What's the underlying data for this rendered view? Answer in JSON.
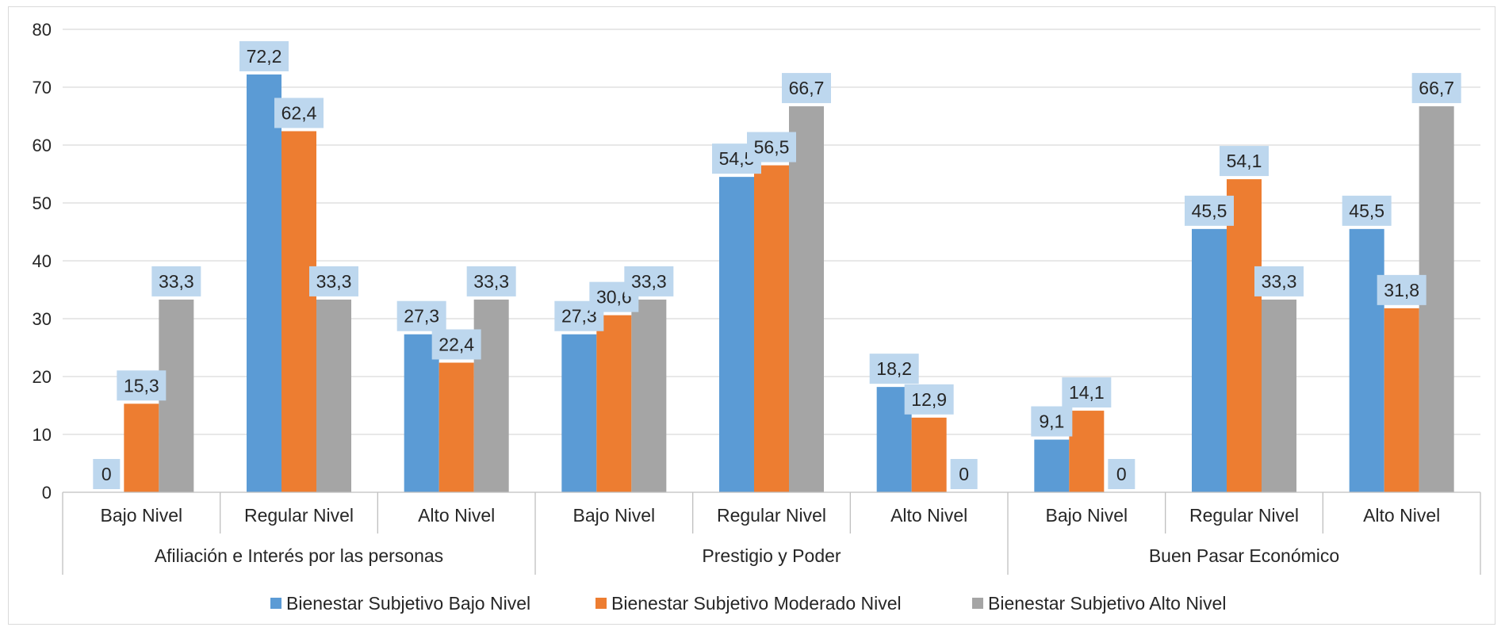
{
  "chart_data": {
    "type": "bar",
    "title": "",
    "xlabel": "",
    "ylabel": "",
    "ylim": [
      0,
      80
    ],
    "yticks": [
      0,
      10,
      20,
      30,
      40,
      50,
      60,
      70,
      80
    ],
    "grid": true,
    "legend_position": "bottom",
    "groups": [
      {
        "name": "Afiliación e Interés por las personas",
        "categories": [
          "Bajo Nivel",
          "Regular Nivel",
          "Alto Nivel"
        ]
      },
      {
        "name": "Prestigio y Poder",
        "categories": [
          "Bajo Nivel",
          "Regular Nivel",
          "Alto Nivel"
        ]
      },
      {
        "name": "Buen Pasar Económico",
        "categories": [
          "Bajo Nivel",
          "Regular Nivel",
          "Alto Nivel"
        ]
      }
    ],
    "categories": [
      "Bajo Nivel",
      "Regular Nivel",
      "Alto Nivel",
      "Bajo Nivel",
      "Regular Nivel",
      "Alto Nivel",
      "Bajo Nivel",
      "Regular Nivel",
      "Alto Nivel"
    ],
    "series": [
      {
        "name": "Bienestar Subjetivo Bajo Nivel",
        "color": "#5b9bd5",
        "values": [
          0,
          72.2,
          27.3,
          27.3,
          54.5,
          18.2,
          9.1,
          45.5,
          45.5
        ],
        "labels": [
          "0",
          "72,2",
          "27,3",
          "27,3",
          "54,5",
          "18,2",
          "9,1",
          "45,5",
          "45,5"
        ]
      },
      {
        "name": "Bienestar Subjetivo Moderado Nivel",
        "color": "#ed7d31",
        "values": [
          15.3,
          62.4,
          22.4,
          30.6,
          56.5,
          12.9,
          14.1,
          54.1,
          31.8
        ],
        "labels": [
          "15,3",
          "62,4",
          "22,4",
          "30,6",
          "56,5",
          "12,9",
          "14,1",
          "54,1",
          "31,8"
        ]
      },
      {
        "name": "Bienestar Subjetivo Alto Nivel",
        "color": "#a5a5a5",
        "values": [
          33.3,
          33.3,
          33.3,
          33.3,
          66.7,
          0,
          0,
          33.3,
          66.7
        ],
        "labels": [
          "33,3",
          "33,3",
          "33,3",
          "33,3",
          "66,7",
          "0",
          "0",
          "33,3",
          "66,7"
        ]
      }
    ],
    "data_label_background": "#bdd7ee"
  }
}
